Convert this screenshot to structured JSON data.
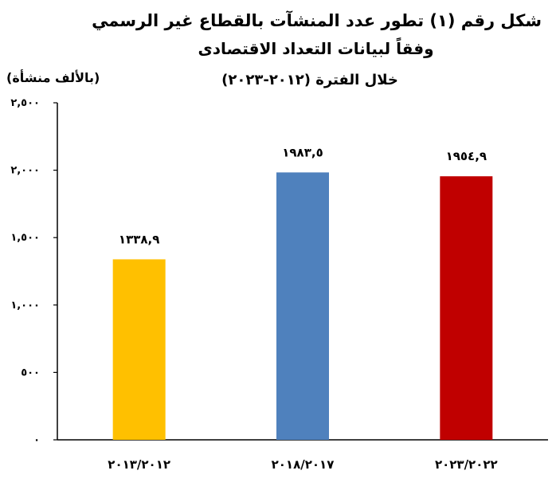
{
  "chart_data": {
    "type": "bar",
    "title_lines": [
      "شكل رقم (١) تطور عدد المنشآت بالقطاع غير الرسمي",
      "وفقاً لبيانات التعداد الاقتصادى",
      "خلال الفترة (٢٠١٢-٢٠٢٣)"
    ],
    "ylabel": "(بالألف منشأة)",
    "categories": [
      "٢٠١٣/٢٠١٢",
      "٢٠١٨/٢٠١٧",
      "٢٠٢٣/٢٠٢٢"
    ],
    "values": [
      1338.9,
      1983.5,
      1954.9
    ],
    "value_labels": [
      "١٣٣٨,٩",
      "١٩٨٣,٥",
      "١٩٥٤,٩"
    ],
    "bar_colors": [
      "#FFC000",
      "#4F81BD",
      "#C00000"
    ],
    "ylim": [
      0,
      2500
    ],
    "yticks": [
      0,
      500,
      1000,
      1500,
      2000,
      2500
    ],
    "ytick_labels": [
      "٠",
      "٥٠٠",
      "١,٠٠٠",
      "١,٥٠٠",
      "٢,٠٠٠",
      "٢,٥٠٠"
    ],
    "grid": false,
    "legend": "none"
  }
}
